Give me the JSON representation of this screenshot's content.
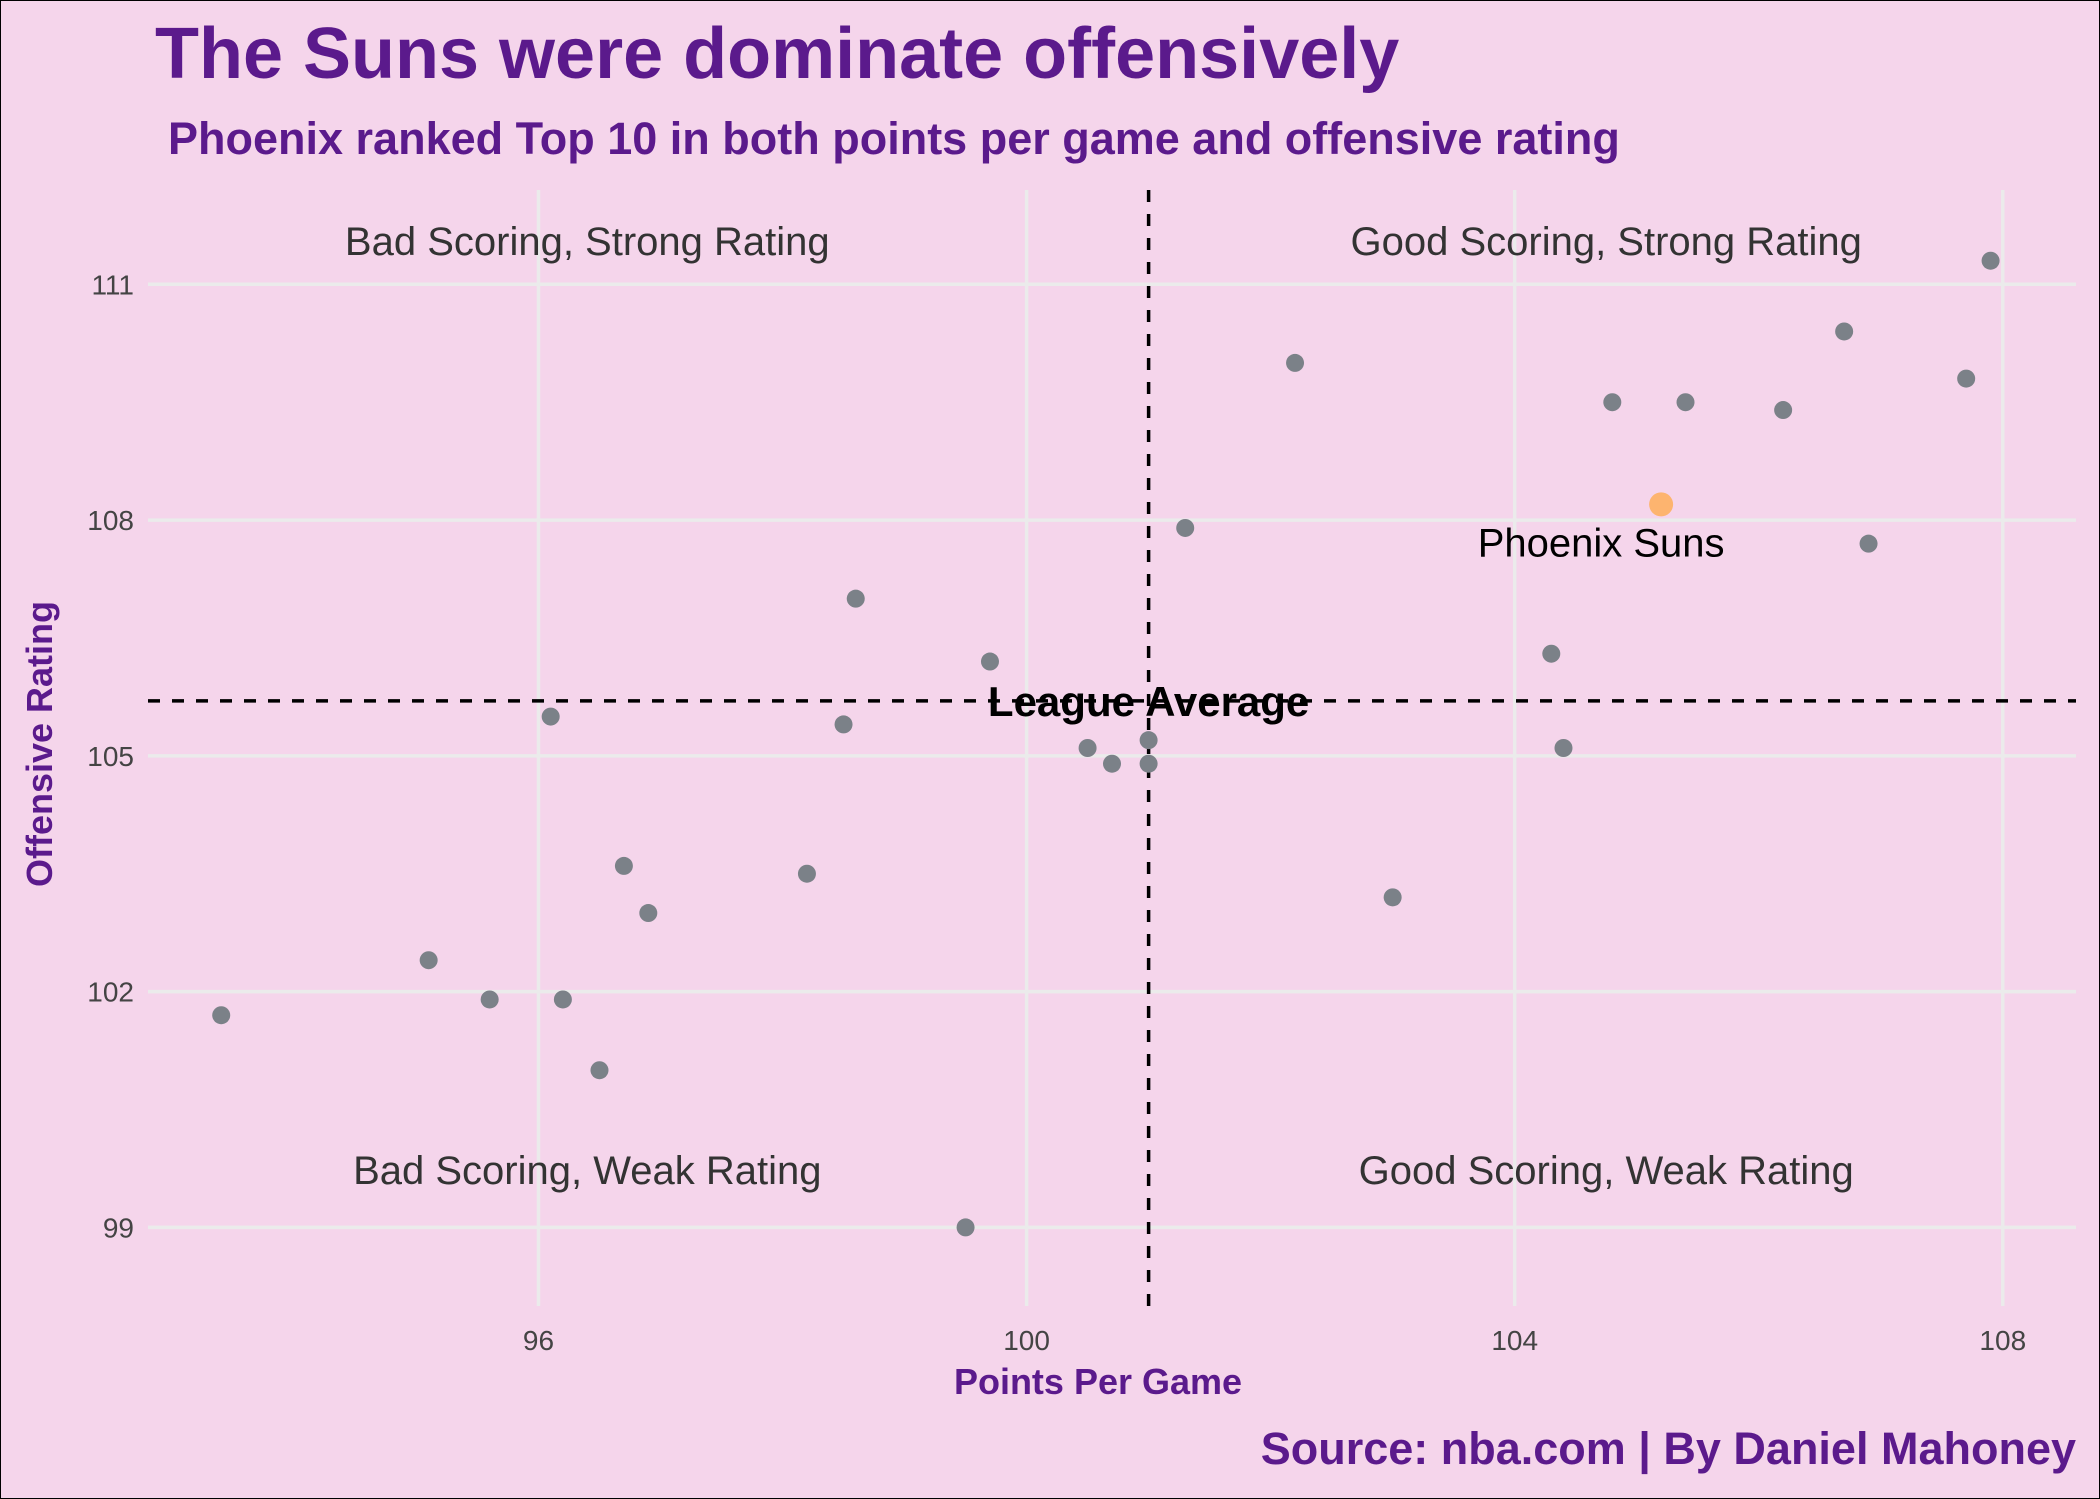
{
  "chart_data": {
    "type": "scatter",
    "title": "The Suns were dominate offensively",
    "subtitle": "Phoenix ranked Top 10 in both points per game and offensive rating",
    "xlabel": "Points Per Game",
    "ylabel": "Offensive Rating",
    "caption": "Source: nba.com | By Daniel Mahoney",
    "xlim": [
      92.8,
      108.6
    ],
    "ylim": [
      98.0,
      112.2
    ],
    "xticks": [
      96,
      100,
      104,
      108
    ],
    "yticks": [
      99,
      102,
      105,
      108,
      111
    ],
    "league_average": {
      "label": "League Average",
      "x": 101.0,
      "y": 105.7
    },
    "quadrant_labels": {
      "top_left": "Bad Scoring, Strong Rating",
      "top_right": "Good Scoring, Strong Rating",
      "bottom_left": "Bad Scoring, Weak Rating",
      "bottom_right": "Good Scoring, Weak Rating"
    },
    "highlight": {
      "label": "Phoenix Suns",
      "x": 105.2,
      "y": 108.2,
      "color": "#fdb46f"
    },
    "point_color": "#7b8188",
    "points": [
      {
        "x": 107.9,
        "y": 111.3
      },
      {
        "x": 106.7,
        "y": 110.4
      },
      {
        "x": 107.7,
        "y": 109.8
      },
      {
        "x": 102.2,
        "y": 110.0
      },
      {
        "x": 104.8,
        "y": 109.5
      },
      {
        "x": 105.4,
        "y": 109.5
      },
      {
        "x": 106.2,
        "y": 109.4
      },
      {
        "x": 106.9,
        "y": 107.7
      },
      {
        "x": 101.3,
        "y": 107.9
      },
      {
        "x": 98.6,
        "y": 107.0
      },
      {
        "x": 99.7,
        "y": 106.2
      },
      {
        "x": 104.3,
        "y": 106.3
      },
      {
        "x": 96.1,
        "y": 105.5
      },
      {
        "x": 98.5,
        "y": 105.4
      },
      {
        "x": 101.0,
        "y": 105.2
      },
      {
        "x": 100.5,
        "y": 105.1
      },
      {
        "x": 100.7,
        "y": 104.9
      },
      {
        "x": 101.0,
        "y": 104.9
      },
      {
        "x": 104.4,
        "y": 105.1
      },
      {
        "x": 96.7,
        "y": 103.6
      },
      {
        "x": 98.2,
        "y": 103.5
      },
      {
        "x": 96.9,
        "y": 103.0
      },
      {
        "x": 103.0,
        "y": 103.2
      },
      {
        "x": 95.1,
        "y": 102.4
      },
      {
        "x": 95.6,
        "y": 101.9
      },
      {
        "x": 96.2,
        "y": 101.9
      },
      {
        "x": 93.4,
        "y": 101.7
      },
      {
        "x": 96.5,
        "y": 101.0
      },
      {
        "x": 99.5,
        "y": 99.0
      }
    ]
  }
}
